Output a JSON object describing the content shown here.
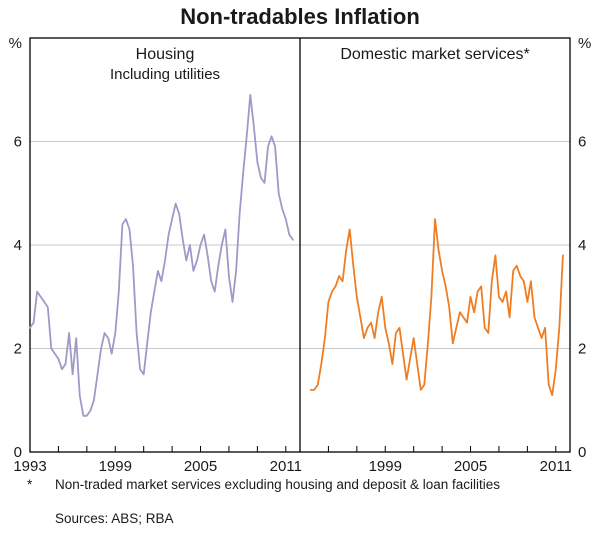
{
  "title": "Non-tradables Inflation",
  "panels": [
    {
      "label": "Housing",
      "sublabel": "Including utilities"
    },
    {
      "label": "Domestic market services*",
      "sublabel": ""
    }
  ],
  "footnote": {
    "marker": "*",
    "text": "Non-traded market services excluding housing and deposit & loan facilities",
    "sources": "Sources: ABS; RBA"
  },
  "chart_data": {
    "type": "line",
    "title": "Non-tradables Inflation",
    "unit": "%",
    "x_range": [
      1993,
      2012
    ],
    "ylim": [
      0,
      8
    ],
    "yticks": [
      0,
      2,
      4,
      6
    ],
    "grid_values": [
      2,
      4,
      6
    ],
    "xticks_left": [
      1993,
      1999,
      2005,
      2011
    ],
    "xticks_right": [
      1999,
      2005,
      2011
    ],
    "minor_xticks_every": 2,
    "legend_position": "panel-headers",
    "grid": true,
    "series": [
      {
        "name": "Housing (including utilities)",
        "panel": 0,
        "color": "#9e9ac8",
        "start_year": 1993.0,
        "step": 0.25,
        "values": [
          2.4,
          2.5,
          3.1,
          3.0,
          2.9,
          2.8,
          2.0,
          1.9,
          1.8,
          1.6,
          1.7,
          2.3,
          1.5,
          2.2,
          1.1,
          0.7,
          0.7,
          0.8,
          1.0,
          1.5,
          2.0,
          2.3,
          2.2,
          1.9,
          2.3,
          3.1,
          4.4,
          4.5,
          4.3,
          3.6,
          2.3,
          1.6,
          1.5,
          2.1,
          2.7,
          3.1,
          3.5,
          3.3,
          3.7,
          4.2,
          4.5,
          4.8,
          4.6,
          4.1,
          3.7,
          4.0,
          3.5,
          3.7,
          4.0,
          4.2,
          3.8,
          3.3,
          3.1,
          3.6,
          4.0,
          4.3,
          3.4,
          2.9,
          3.5,
          4.6,
          5.4,
          6.1,
          6.9,
          6.3,
          5.6,
          5.3,
          5.2,
          5.9,
          6.1,
          5.9,
          5.0,
          4.7,
          4.5,
          4.2,
          4.1
        ]
      },
      {
        "name": "Domestic market services",
        "panel": 1,
        "color": "#ef7d23",
        "start_year": 1993.75,
        "step": 0.25,
        "values": [
          1.2,
          1.2,
          1.3,
          1.7,
          2.2,
          2.9,
          3.1,
          3.2,
          3.4,
          3.3,
          3.9,
          4.3,
          3.6,
          3.0,
          2.6,
          2.2,
          2.4,
          2.5,
          2.2,
          2.7,
          3.0,
          2.4,
          2.1,
          1.7,
          2.3,
          2.4,
          1.9,
          1.4,
          1.8,
          2.2,
          1.7,
          1.2,
          1.3,
          2.1,
          3.0,
          4.5,
          3.9,
          3.5,
          3.2,
          2.8,
          2.1,
          2.4,
          2.7,
          2.6,
          2.5,
          3.0,
          2.7,
          3.1,
          3.2,
          2.4,
          2.3,
          3.3,
          3.8,
          3.0,
          2.9,
          3.1,
          2.6,
          3.5,
          3.6,
          3.4,
          3.3,
          2.9,
          3.3,
          2.6,
          2.4,
          2.2,
          2.4,
          1.3,
          1.1,
          1.6,
          2.4,
          3.8
        ]
      }
    ]
  }
}
